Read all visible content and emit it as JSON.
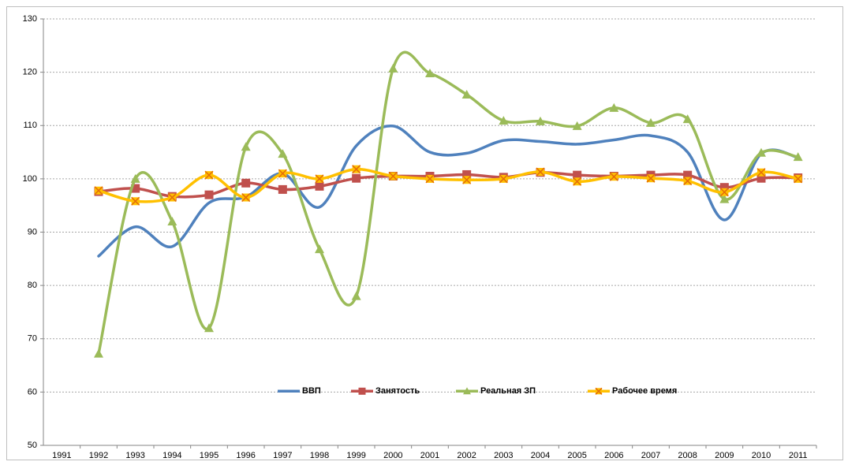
{
  "chart_data": {
    "type": "line",
    "smooth": true,
    "grid": true,
    "legend": "inside-bottom",
    "categories": [
      "1991",
      "1992",
      "1993",
      "1994",
      "1995",
      "1996",
      "1997",
      "1998",
      "1999",
      "2000",
      "2001",
      "2002",
      "2003",
      "2004",
      "2005",
      "2006",
      "2007",
      "2008",
      "2009",
      "2010",
      "2011"
    ],
    "ylim": [
      50,
      130
    ],
    "yticks": [
      50,
      60,
      70,
      80,
      90,
      100,
      110,
      120,
      130
    ],
    "series": [
      {
        "name": "ВВП",
        "color": "#4f81bd",
        "marker": "none",
        "values": [
          null,
          85.5,
          91,
          87.3,
          95.5,
          96.6,
          101,
          94.7,
          106.2,
          109.9,
          105,
          104.8,
          107.2,
          107,
          106.5,
          107.3,
          108.1,
          105,
          92.3,
          104.7,
          104
        ]
      },
      {
        "name": "Занятость",
        "color": "#c0504d",
        "marker": "square",
        "values": [
          null,
          97.6,
          98.2,
          96.7,
          97,
          99.2,
          98,
          98.6,
          100.1,
          100.5,
          100.5,
          100.8,
          100.3,
          101.2,
          100.7,
          100.5,
          100.7,
          100.7,
          98.4,
          100.1,
          100.2
        ]
      },
      {
        "name": "Реальная ЗП",
        "color": "#9bbb59",
        "marker": "triangle",
        "values": [
          null,
          67.2,
          100,
          92,
          72,
          106,
          104.7,
          86.8,
          78,
          120.7,
          119.8,
          115.8,
          110.9,
          110.8,
          109.9,
          113.3,
          110.5,
          111.2,
          96.2,
          104.9,
          104.1
        ]
      },
      {
        "name": "Рабочее время",
        "color": "#ffc000",
        "marker": "x",
        "values": [
          null,
          97.8,
          95.8,
          96.5,
          100.7,
          96.5,
          101,
          100,
          101.8,
          100.5,
          100,
          99.8,
          100,
          101.3,
          99.5,
          100.4,
          100.1,
          99.6,
          97.5,
          101.2,
          100
        ]
      }
    ]
  }
}
